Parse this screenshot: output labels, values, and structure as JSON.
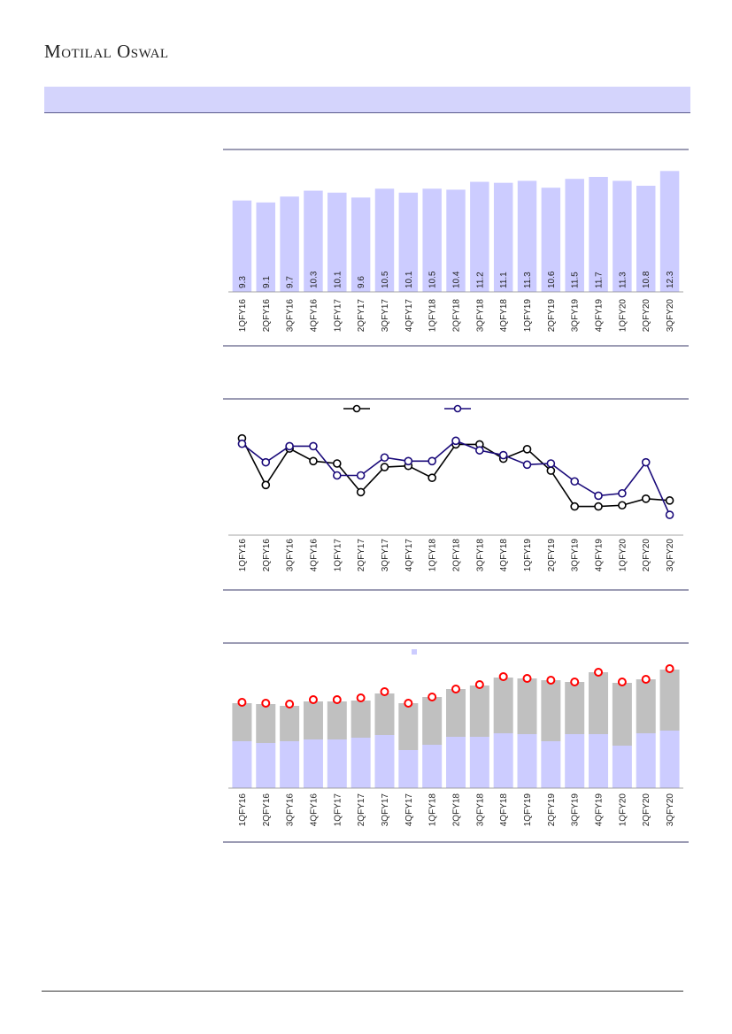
{
  "header": {
    "logo_text": "Motilal Oswal"
  },
  "colors": {
    "bar": "#ccccff",
    "stack_top": "#c0c0c0",
    "series_black": "#000000",
    "series_navy": "#1a0a7a",
    "dot_red": "#ff0000",
    "rule": "#3a3a6a"
  },
  "chart_data": [
    {
      "type": "bar",
      "categories": [
        "1QFY16",
        "2QFY16",
        "3QFY16",
        "4QFY16",
        "1QFY17",
        "2QFY17",
        "3QFY17",
        "4QFY17",
        "1QFY18",
        "2QFY18",
        "3QFY18",
        "4QFY18",
        "1QFY19",
        "2QFY19",
        "3QFY19",
        "4QFY19",
        "1QFY20",
        "2QFY20",
        "3QFY20"
      ],
      "values": [
        9.3,
        9.1,
        9.7,
        10.3,
        10.1,
        9.6,
        10.5,
        10.1,
        10.5,
        10.4,
        11.2,
        11.1,
        11.3,
        10.6,
        11.5,
        11.7,
        11.3,
        10.8,
        12.3
      ],
      "value_labels": [
        "9.3",
        "9.1",
        "9.7",
        "10.3",
        "10.1",
        "9.6",
        "10.5",
        "10.1",
        "10.5",
        "10.4",
        "11.2",
        "11.1",
        "11.3",
        "10.6",
        "11.5",
        "11.7",
        "11.3",
        "10.8",
        "12.3"
      ],
      "ylim": [
        0,
        13.5
      ],
      "grid": false,
      "data_labels": "inside-bottom-rotated"
    },
    {
      "type": "line",
      "categories": [
        "1QFY16",
        "2QFY16",
        "3QFY16",
        "4QFY16",
        "1QFY17",
        "2QFY17",
        "3QFY17",
        "4QFY17",
        "1QFY18",
        "2QFY18",
        "3QFY18",
        "4QFY18",
        "1QFY19",
        "2QFY19",
        "3QFY19",
        "4QFY19",
        "1QFY20",
        "2QFY20",
        "3QFY20"
      ],
      "series": [
        {
          "color": "#000000",
          "values": [
            34.2,
            26.4,
            32.5,
            30.4,
            30.0,
            25.2,
            29.4,
            29.6,
            27.6,
            33.2,
            33.2,
            30.8,
            32.4,
            28.8,
            22.8,
            22.8,
            23.0,
            24.1,
            23.8
          ]
        },
        {
          "color": "#1a0a7a",
          "values": [
            33.3,
            30.2,
            32.9,
            32.9,
            28.0,
            28.0,
            31.0,
            30.4,
            30.4,
            33.8,
            32.2,
            31.4,
            29.8,
            30.0,
            27.0,
            24.6,
            25.0,
            30.2,
            21.4
          ]
        }
      ],
      "ylim": [
        18,
        38
      ],
      "legend_position": "top-center",
      "grid": false
    },
    {
      "type": "bar",
      "stacked": true,
      "categories": [
        "1QFY16",
        "2QFY16",
        "3QFY16",
        "4QFY16",
        "1QFY17",
        "2QFY17",
        "3QFY17",
        "4QFY17",
        "1QFY18",
        "2QFY18",
        "3QFY18",
        "4QFY18",
        "1QFY19",
        "2QFY19",
        "3QFY19",
        "4QFY19",
        "1QFY20",
        "2QFY20",
        "3QFY20"
      ],
      "series": [
        {
          "color": "#ccccff",
          "values": [
            53,
            51,
            53,
            55,
            55,
            57,
            60,
            43,
            49,
            58,
            58,
            62,
            61,
            53,
            61,
            61,
            48,
            62,
            65
          ]
        },
        {
          "color": "#c0c0c0",
          "values": [
            43,
            44,
            40,
            43,
            43,
            42,
            47,
            53,
            54,
            54,
            58,
            63,
            63,
            69,
            59,
            70,
            71,
            61,
            69
          ]
        }
      ],
      "overlay": {
        "type": "scatter",
        "color": "#ff0000",
        "values": [
          97,
          96,
          95,
          100,
          100,
          102,
          109,
          96,
          103,
          112,
          117,
          126,
          124,
          122,
          120,
          131,
          120,
          123,
          135
        ]
      },
      "ylim": [
        0,
        150
      ],
      "legend_position": "top-center",
      "grid": false
    }
  ]
}
